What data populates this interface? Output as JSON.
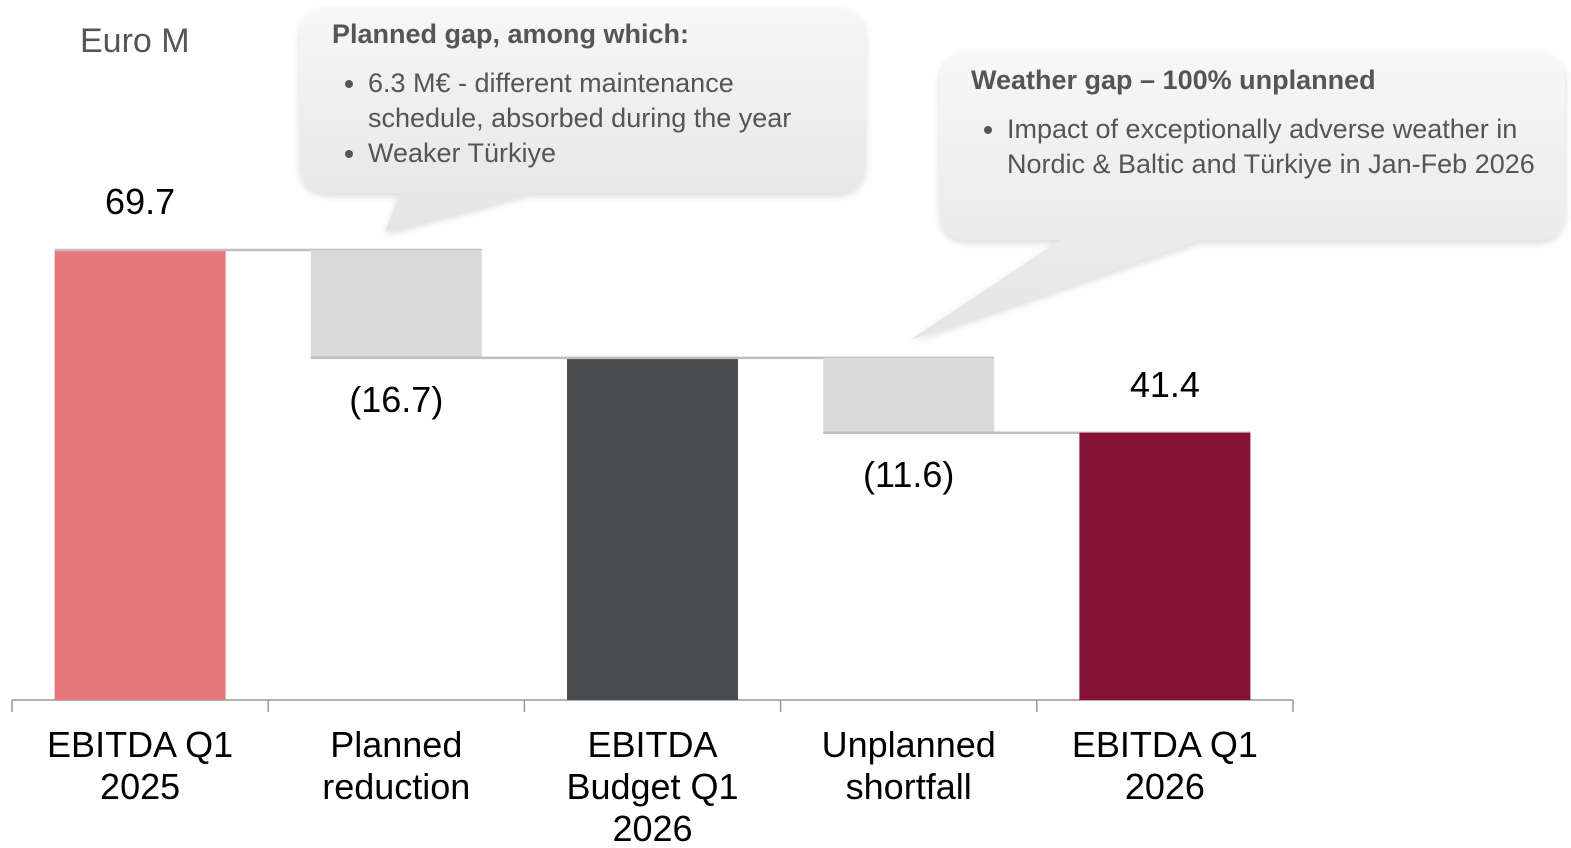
{
  "chart_data": {
    "type": "waterfall",
    "unit_label": "Euro M",
    "categories": [
      "EBITDA Q1 2025",
      "Planned reduction",
      "EBITDA Budget Q1 2026",
      "Unplanned shortfall",
      "EBITDA Q1 2026"
    ],
    "measure": [
      "total",
      "delta",
      "total",
      "delta",
      "total"
    ],
    "values": [
      69.7,
      -16.7,
      53.0,
      -11.6,
      41.4
    ],
    "value_labels": [
      "69.7",
      "(16.7)",
      null,
      "(11.6)",
      "41.4"
    ],
    "colors": [
      "#e6777a",
      "#d9d9d9",
      "#4a4d50",
      "#d9d9d9",
      "#861335"
    ],
    "annotations": [
      {
        "title": "Planned gap, among which:",
        "bullets": [
          "6.3 M€ - different maintenance schedule, absorbed during the year",
          "Weaker Türkiye"
        ]
      },
      {
        "title": "Weather gap – 100% unplanned",
        "bullets": [
          "Impact of exceptionally adverse weather in Nordic & Baltic and Türkiye in Jan-Feb 2026"
        ]
      }
    ]
  }
}
